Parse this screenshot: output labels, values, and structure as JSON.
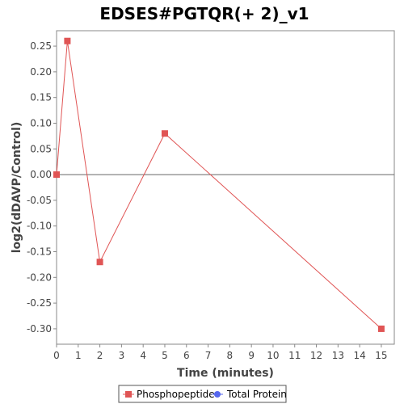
{
  "chart_data": {
    "type": "line",
    "title": "EDSES#PGTQR(+ 2)_v1",
    "xlabel": "Time (minutes)",
    "ylabel": "log2(dDAVP/Control)",
    "xlim": [
      0,
      15.6
    ],
    "ylim": [
      -0.33,
      0.28
    ],
    "x_ticks": [
      0,
      1,
      2,
      3,
      4,
      5,
      6,
      7,
      8,
      9,
      10,
      11,
      12,
      13,
      14,
      15
    ],
    "y_ticks": [
      0.25,
      0.2,
      0.15,
      0.1,
      0.05,
      0.0,
      -0.05,
      -0.1,
      -0.15,
      -0.2,
      -0.25,
      -0.3
    ],
    "y_tick_labels": [
      "0.25",
      "0.20",
      "0.15",
      "0.10",
      "0.05",
      "0.00",
      "-0.05",
      "-0.10",
      "-0.15",
      "-0.20",
      "-0.25",
      "-0.30"
    ],
    "zero_line": true,
    "grid": false,
    "legend_position": "bottom",
    "series": [
      {
        "name": "Phosphopeptide",
        "color": "#e05555",
        "marker": "square",
        "x": [
          0,
          0.5,
          2,
          5,
          15
        ],
        "y": [
          0.0,
          0.26,
          -0.17,
          0.08,
          -0.3
        ]
      },
      {
        "name": "Total Protein",
        "color": "#5566ee",
        "marker": "circle",
        "x": [],
        "y": []
      }
    ]
  }
}
